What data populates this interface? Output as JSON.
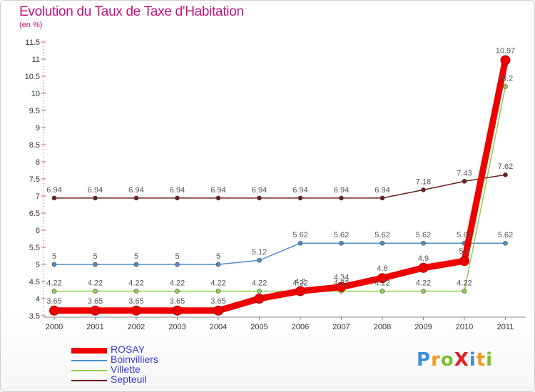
{
  "title": "Evolution du Taux de Taxe d'Habitation",
  "subtitle": "(en %)",
  "logo": {
    "text": "ProXiti",
    "letters": [
      "P",
      "r",
      "o",
      "x",
      "i",
      "t",
      "i"
    ],
    "colors": [
      "#3b8ed6",
      "#f29a1b",
      "#7bbf2a",
      "#e02020",
      "#3b8ed6",
      "#f29a1b",
      "#7bbf2a"
    ]
  },
  "chart_data": {
    "type": "line",
    "title": "Evolution du Taux de Taxe d'Habitation",
    "ylabel": "(en %)",
    "xlabel": "",
    "x": [
      "2000",
      "2001",
      "2002",
      "2003",
      "2004",
      "2005",
      "2006",
      "2007",
      "2008",
      "2009",
      "2010",
      "2011"
    ],
    "ylim": [
      3.5,
      11.5
    ],
    "yticks": [
      "3.5",
      "4",
      "4.5",
      "5",
      "5.5",
      "6",
      "6.5",
      "7",
      "7.5",
      "8",
      "8.5",
      "9",
      "9.5",
      "10",
      "10.5",
      "11",
      "11.5"
    ],
    "grid": false,
    "legend_position": "bottom-left",
    "series": [
      {
        "name": "ROSAY",
        "color": "#ee0000",
        "width": 9,
        "marker_r": 6.5,
        "values": [
          3.65,
          3.65,
          3.65,
          3.65,
          3.65,
          4.0,
          4.22,
          4.34,
          4.6,
          4.9,
          5.1,
          10.97
        ],
        "labels": [
          "3.65",
          "3.65",
          "3.65",
          "3.65",
          "3.65",
          "",
          "4.2",
          "4.34",
          "4.6",
          "4.9",
          "5.1",
          "10.97"
        ]
      },
      {
        "name": "Boinvilliers",
        "color": "#4f8fc9",
        "width": 1.5,
        "marker_r": 3,
        "values": [
          5,
          5,
          5,
          5,
          5,
          5.12,
          5.62,
          5.62,
          5.62,
          5.62,
          5.62,
          5.62
        ],
        "labels": [
          "5",
          "5",
          "5",
          "5",
          "5",
          "5.12",
          "5.62",
          "5.62",
          "5.62",
          "5.62",
          "5.62",
          "5.62"
        ]
      },
      {
        "name": "Villette",
        "color": "#8fd14f",
        "width": 1.5,
        "marker_r": 3,
        "values": [
          4.22,
          4.22,
          4.22,
          4.22,
          4.22,
          4.22,
          4.22,
          4.22,
          4.22,
          4.22,
          4.22,
          10.2
        ],
        "labels": [
          "4.22",
          "4.22",
          "4.22",
          "4.22",
          "4.22",
          "4.22",
          "4.22",
          "4.22",
          "4.22",
          "4.22",
          "4.22",
          "10.2"
        ]
      },
      {
        "name": "Septeuil",
        "color": "#6b1e1e",
        "width": 1.5,
        "marker_r": 3,
        "values": [
          6.94,
          6.94,
          6.94,
          6.94,
          6.94,
          6.94,
          6.94,
          6.94,
          6.94,
          7.18,
          7.43,
          7.62
        ],
        "labels": [
          "6.94",
          "6.94",
          "6.94",
          "6.94",
          "6.94",
          "6.94",
          "6.94",
          "6.94",
          "6.94",
          "7.18",
          "7.43",
          "7.62"
        ]
      }
    ]
  }
}
